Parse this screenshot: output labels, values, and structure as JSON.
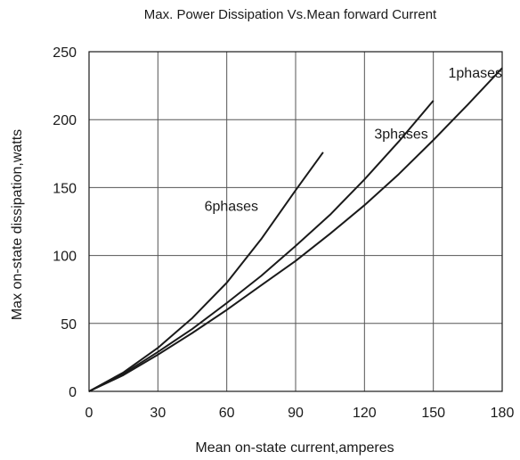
{
  "chart_data": {
    "type": "line",
    "title": "Max. Power  Dissipation  Vs.Mean forward  Current",
    "xlabel": "Mean on-state current,amperes",
    "ylabel": "Max on-state dissipation,watts",
    "xlim": [
      0,
      180
    ],
    "ylim": [
      0,
      250
    ],
    "xticks": [
      0,
      30,
      60,
      90,
      120,
      150,
      180
    ],
    "yticks": [
      0,
      50,
      100,
      150,
      200,
      250
    ],
    "grid": true,
    "legend": "none (curves labeled inline)",
    "line_color": "#1a1a1a",
    "series": [
      {
        "name": "6phases",
        "x": [
          0,
          15,
          30,
          45,
          60,
          75,
          90,
          102
        ],
        "y": [
          0,
          14,
          32,
          54,
          80,
          112,
          148,
          176
        ]
      },
      {
        "name": "3phases",
        "x": [
          0,
          15,
          30,
          45,
          60,
          75,
          90,
          105,
          120,
          135,
          150
        ],
        "y": [
          0,
          13,
          29,
          46,
          65,
          85,
          107,
          130,
          156,
          184,
          214
        ]
      },
      {
        "name": "1phases",
        "x": [
          0,
          15,
          30,
          45,
          60,
          75,
          90,
          105,
          120,
          135,
          150,
          165,
          180
        ],
        "y": [
          0,
          12,
          27,
          43,
          60,
          78,
          96,
          116,
          137,
          160,
          185,
          211,
          238
        ]
      }
    ]
  }
}
